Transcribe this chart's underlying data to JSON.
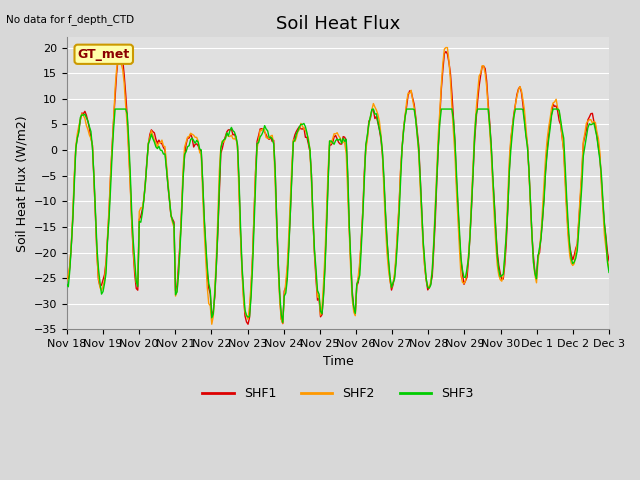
{
  "title": "Soil Heat Flux",
  "xlabel": "Time",
  "ylabel": "Soil Heat Flux (W/m2)",
  "top_left_text": "No data for f_depth_CTD",
  "box_label": "GT_met",
  "ylim": [
    -35,
    22
  ],
  "yticks": [
    -35,
    -30,
    -25,
    -20,
    -15,
    -10,
    -5,
    0,
    5,
    10,
    15,
    20
  ],
  "xtick_labels": [
    "Nov 18",
    "Nov 19",
    "Nov 20",
    "Nov 21",
    "Nov 22",
    "Nov 23",
    "Nov 24",
    "Nov 25",
    "Nov 26",
    "Nov 27",
    "Nov 28",
    "Nov 29",
    "Nov 30",
    "Dec 1",
    "Dec 2",
    "Dec 3"
  ],
  "colors": {
    "SHF1": "#dd0000",
    "SHF2": "#ff9900",
    "SHF3": "#00cc00"
  },
  "bg_color": "#d8d8d8",
  "plot_bg": "#e0e0e0",
  "grid_color": "#ffffff",
  "title_fontsize": 13,
  "label_fontsize": 9,
  "tick_fontsize": 8,
  "linewidth": 1.0
}
